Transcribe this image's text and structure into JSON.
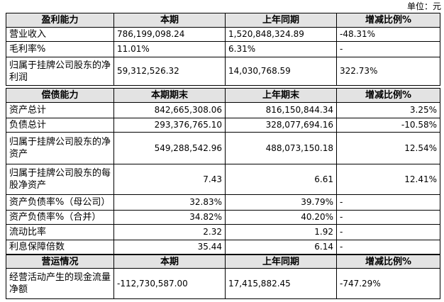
{
  "unit": "单位：元",
  "sections": [
    {
      "header": [
        "盈利能力",
        "本期",
        "上年同期",
        "增减比例%"
      ],
      "rows": [
        [
          "营业收入",
          "786,199,098.24",
          "1,520,848,324.89",
          "-48.31%"
        ],
        [
          "毛利率%",
          "11.01%",
          "6.31%",
          "-"
        ],
        [
          "归属于挂牌公司股东的净利润",
          "59,312,526.32",
          "14,030,768.59",
          "322.73%"
        ]
      ]
    },
    {
      "header": [
        "偿债能力",
        "本期期末",
        "上年期末",
        "增减比例%"
      ],
      "rows": [
        [
          "资产总计",
          "842,665,308.06",
          "816,150,844.34",
          "3.25%"
        ],
        [
          "负债总计",
          "293,376,765.10",
          "328,077,694.16",
          "-10.58%"
        ],
        [
          "归属于挂牌公司股东的净资产",
          "549,288,542.96",
          "488,073,150.18",
          "12.54%"
        ],
        [
          "归属于挂牌公司股东的每股净资产",
          "7.43",
          "6.61",
          "12.41%"
        ],
        [
          "资产负债率%（母公司）",
          "32.83%",
          "39.79%",
          "-"
        ],
        [
          "资产负债率%（合并）",
          "34.82%",
          "40.20%",
          "-"
        ],
        [
          "流动比率",
          "2.32",
          "1.92",
          "-"
        ],
        [
          "利息保障倍数",
          "35.44",
          "6.14",
          "-"
        ]
      ]
    },
    {
      "header": [
        "营运情况",
        "本期",
        "上年同期",
        "增减比例%"
      ],
      "rows": [
        [
          "经营活动产生的现金流量净额",
          "-112,730,587.00",
          "17,415,882.45",
          "-747.29%"
        ]
      ]
    }
  ]
}
